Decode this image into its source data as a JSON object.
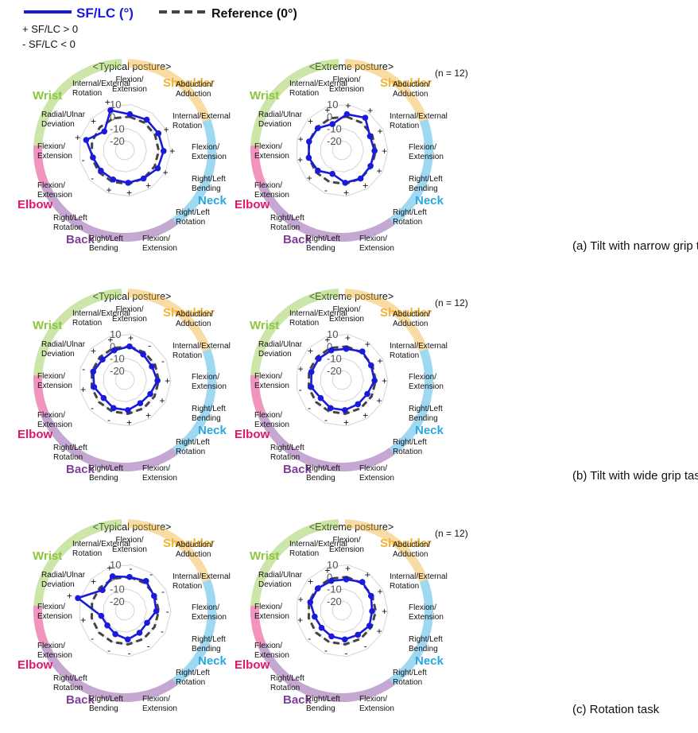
{
  "legend": {
    "series": "SF/LC (°)",
    "reference": "Reference (0°)",
    "plus_note": "+ SF/LC > 0",
    "minus_note": "- SF/LC < 0"
  },
  "colors": {
    "series": "#1a1adc",
    "reference": "#444444",
    "wrist": "#8dc63f",
    "elbow": "#e0156b",
    "back": "#7e3f98",
    "neck": "#29a8e0",
    "shoulder": "#f2b233"
  },
  "labels": {
    "n": "(n = 12)",
    "typical": "<Typical posture>",
    "extreme": "<Extreme posture>",
    "ticks": [
      "10",
      "0",
      "-10",
      "-20"
    ]
  },
  "regions": {
    "wrist": "Wrist",
    "elbow": "Elbow",
    "back": "Back",
    "neck": "Neck",
    "shoulder": "Shoulder"
  },
  "axes": [
    [
      "Flexion/",
      "Extension"
    ],
    [
      "Abduction/",
      "Adduction"
    ],
    [
      "Internal/External",
      "Rotation"
    ],
    [
      "Flexion/",
      "Extension"
    ],
    [
      "Right/Left",
      "Bending"
    ],
    [
      "Right/Left",
      "Rotation"
    ],
    [
      "Flexion/",
      "Extension"
    ],
    [
      "Right/Left",
      "Bending"
    ],
    [
      "Right/Left",
      "Rotation"
    ],
    [
      "Flexion/",
      "Extension"
    ],
    [
      "Flexion/",
      "Extension"
    ],
    [
      "Radial/Ulnar",
      "Deviation"
    ],
    [
      "Internal/External",
      "Rotation"
    ]
  ],
  "chart_data": [
    {
      "type": "radar",
      "task": "(a) Tilt with narrow grip task",
      "posture": "<Typical posture>",
      "rlim": [
        -20,
        10
      ],
      "values": [
        2,
        3,
        3,
        4,
        3,
        0,
        -1,
        -2,
        -2,
        -1,
        5,
        -5,
        7
      ],
      "signs": [
        "",
        "",
        "+",
        "+",
        "+",
        "+",
        "+",
        "+",
        "-",
        "-",
        "+",
        "+",
        "+"
      ]
    },
    {
      "type": "radar",
      "task": "(a) Tilt with narrow grip task",
      "posture": "<Extreme posture>",
      "rlim": [
        -20,
        10
      ],
      "values": [
        2,
        5,
        -2,
        -1,
        -1,
        0,
        -1,
        -7,
        -2,
        0,
        0,
        -1,
        -5
      ],
      "signs": [
        "+",
        "+",
        "+",
        "+",
        "+",
        "+",
        "+",
        "-",
        "+",
        "+",
        "+",
        "+",
        "+"
      ]
    },
    {
      "type": "radar",
      "task": "(b) Tilt with wide grip task",
      "posture": "<Typical posture>",
      "rlim": [
        -20,
        10
      ],
      "values": [
        0,
        -2,
        -3,
        -1,
        -4,
        -5,
        -3,
        -3,
        -5,
        -2,
        -1,
        -3,
        -2
      ],
      "signs": [
        "+",
        "-",
        "-",
        "+",
        "+",
        "+",
        "+",
        "-",
        "-",
        "+",
        "-",
        "+",
        "+"
      ]
    },
    {
      "type": "radar",
      "task": "(b) Tilt with wide grip task",
      "posture": "<Extreme posture>",
      "rlim": [
        -20,
        10
      ],
      "values": [
        -2,
        1,
        -1,
        -1,
        -4,
        -4,
        -3,
        -3,
        -5,
        -2,
        -2,
        -2,
        -2
      ],
      "signs": [
        "+",
        "+",
        "+",
        "+",
        "+",
        "+",
        "+",
        "-",
        "-",
        "-",
        "+",
        "+",
        "+"
      ]
    },
    {
      "type": "radar",
      "task": "(c) Rotation task",
      "posture": "<Typical posture>",
      "rlim": [
        -20,
        10
      ],
      "values": [
        0,
        2,
        -1,
        -2,
        -7,
        -6,
        -4,
        -7,
        -9,
        -8,
        12,
        -3,
        2
      ],
      "signs": [
        "-",
        "-",
        "-",
        "-",
        "-",
        "-",
        "-",
        "-",
        "-",
        "+",
        "+",
        "+",
        "+"
      ]
    },
    {
      "type": "radar",
      "task": "(c) Rotation task",
      "posture": "<Extreme posture>",
      "rlim": [
        -20,
        10
      ],
      "values": [
        -2,
        1,
        -1,
        -3,
        -2,
        -4,
        -4,
        -5,
        -6,
        -5,
        -1,
        -1,
        -2
      ],
      "signs": [
        "+",
        "+",
        "+",
        "+",
        "+",
        "-",
        "-",
        "-",
        "-",
        "+",
        "+",
        "+",
        "+"
      ]
    }
  ]
}
